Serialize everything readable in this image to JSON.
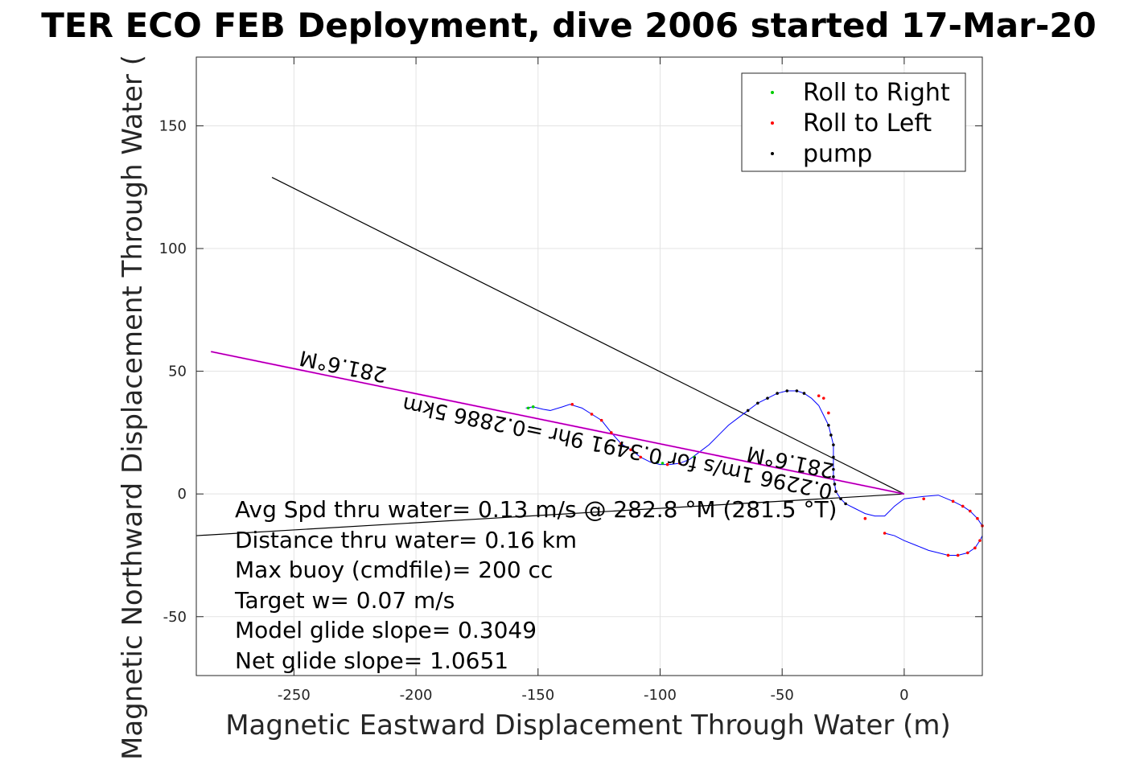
{
  "chart_data": {
    "type": "scatter",
    "title": "TER ECO FEB Deployment, dive 2006 started 17-Mar-20",
    "xlabel": "Magnetic Eastward Displacement Through Water (m)",
    "ylabel": "Magnetic Northward Displacement Through Water (",
    "xlim": [
      -290,
      32
    ],
    "ylim": [
      -74,
      178
    ],
    "xticks": [
      -250,
      -200,
      -150,
      -100,
      -50,
      0
    ],
    "yticks": [
      -50,
      0,
      50,
      100,
      150
    ],
    "xtick_labels": [
      "-250",
      "-200",
      "-150",
      "-100",
      "-50",
      "0"
    ],
    "ytick_labels": [
      "-50",
      "0",
      "50",
      "100",
      "150"
    ],
    "grid": true,
    "legend_position": "top-right",
    "legend": [
      {
        "label": "Roll to Right",
        "color": "#00cc00"
      },
      {
        "label": "Roll to Left",
        "color": "#ff0000"
      },
      {
        "label": "pump",
        "color": "#000000"
      }
    ],
    "colors": {
      "track": "#0000ff",
      "vector": "#ff00ff",
      "reference": "#000000"
    },
    "track": {
      "x": [
        -155,
        -152,
        -148,
        -145,
        -140,
        -137,
        -132,
        -128,
        -124,
        -120,
        -116,
        -112,
        -108,
        -104,
        -100,
        -96,
        -92,
        -88,
        -84,
        -80,
        -76,
        -72,
        -68,
        -64,
        -60,
        -56,
        -52,
        -48,
        -44,
        -41,
        -38,
        -35,
        -33,
        -31,
        -30,
        -29,
        -29,
        -29,
        -29,
        -28.5,
        -28,
        -26,
        -24,
        -20,
        -16,
        -12,
        -8,
        -4,
        0,
        4,
        8,
        14,
        20,
        24,
        27,
        30,
        32,
        32,
        31,
        29,
        26,
        22,
        18,
        14,
        10,
        5,
        0,
        -4,
        -8
      ],
      "y": [
        35,
        35.5,
        34.5,
        34,
        35.5,
        36.5,
        35,
        32.5,
        30,
        25,
        20.5,
        18,
        15,
        13,
        12,
        12,
        12.5,
        14,
        17,
        20,
        24,
        28,
        31,
        34,
        37,
        39,
        41,
        42,
        42,
        41,
        39,
        36,
        32,
        28,
        24,
        20,
        15,
        10,
        7,
        4,
        1,
        -2,
        -4,
        -6,
        -8,
        -9,
        -9,
        -5,
        -2,
        -1.5,
        -1,
        -0.5,
        -3,
        -5,
        -7,
        -10,
        -13,
        -17,
        -19,
        -22,
        -24,
        -25,
        -25,
        -24,
        -23,
        -21,
        -19,
        -17,
        -16
      ],
      "roll_right_x": [
        -154,
        -152,
        -101,
        -99,
        -86
      ],
      "roll_right_y": [
        35,
        35.5,
        13,
        12.5,
        15
      ],
      "roll_left_x": [
        -136,
        -128,
        -124,
        -120,
        -116,
        -112,
        -108,
        -97,
        -92,
        -35,
        -33,
        -31,
        -28,
        -16,
        -8,
        8,
        20,
        24,
        27,
        30,
        32,
        31,
        29,
        26,
        22,
        18
      ],
      "roll_left_y": [
        36.5,
        32.5,
        30,
        25,
        20.5,
        18,
        15,
        12,
        12.5,
        40,
        39,
        33,
        1,
        -10,
        -16,
        -2,
        -3,
        -5,
        -7,
        -10,
        -13,
        -19,
        -22,
        -24,
        -25,
        -25
      ],
      "pump_x": [
        -64,
        -60,
        -56,
        -52,
        -48,
        -44,
        -41,
        -31,
        -30,
        -29,
        -29,
        -29,
        -29,
        -28.5,
        -28,
        -26,
        -24
      ],
      "pump_y": [
        34,
        37,
        39,
        41,
        42,
        42,
        41,
        28,
        24,
        20,
        15,
        10,
        7,
        4,
        1,
        -2,
        -4
      ]
    },
    "vector": {
      "x": [
        0,
        -284
      ],
      "y": [
        0,
        58
      ]
    },
    "reference_lines": [
      {
        "x": [
          -259,
          0
        ],
        "y": [
          129,
          0
        ]
      },
      {
        "x": [
          -290,
          0
        ],
        "y": [
          -17,
          0
        ]
      }
    ]
  },
  "annotations": {
    "vector_heading_far": "281.6°M",
    "vector_heading_near": "281.6°M",
    "vector_summary": "0.2296 1m/s for 0.3491 9hr =0.2886 5km"
  },
  "stats": {
    "line1": "Avg Spd thru water=  0.13 m/s @ 282.8 °M (281.5 °T)",
    "line2": "Distance thru water=  0.16 km",
    "line3": "Max buoy (cmdfile)= 200 cc",
    "line4": "Target w= 0.07 m/s",
    "line5": "Model glide slope= 0.3049",
    "line6": "Net glide slope= 1.0651"
  }
}
